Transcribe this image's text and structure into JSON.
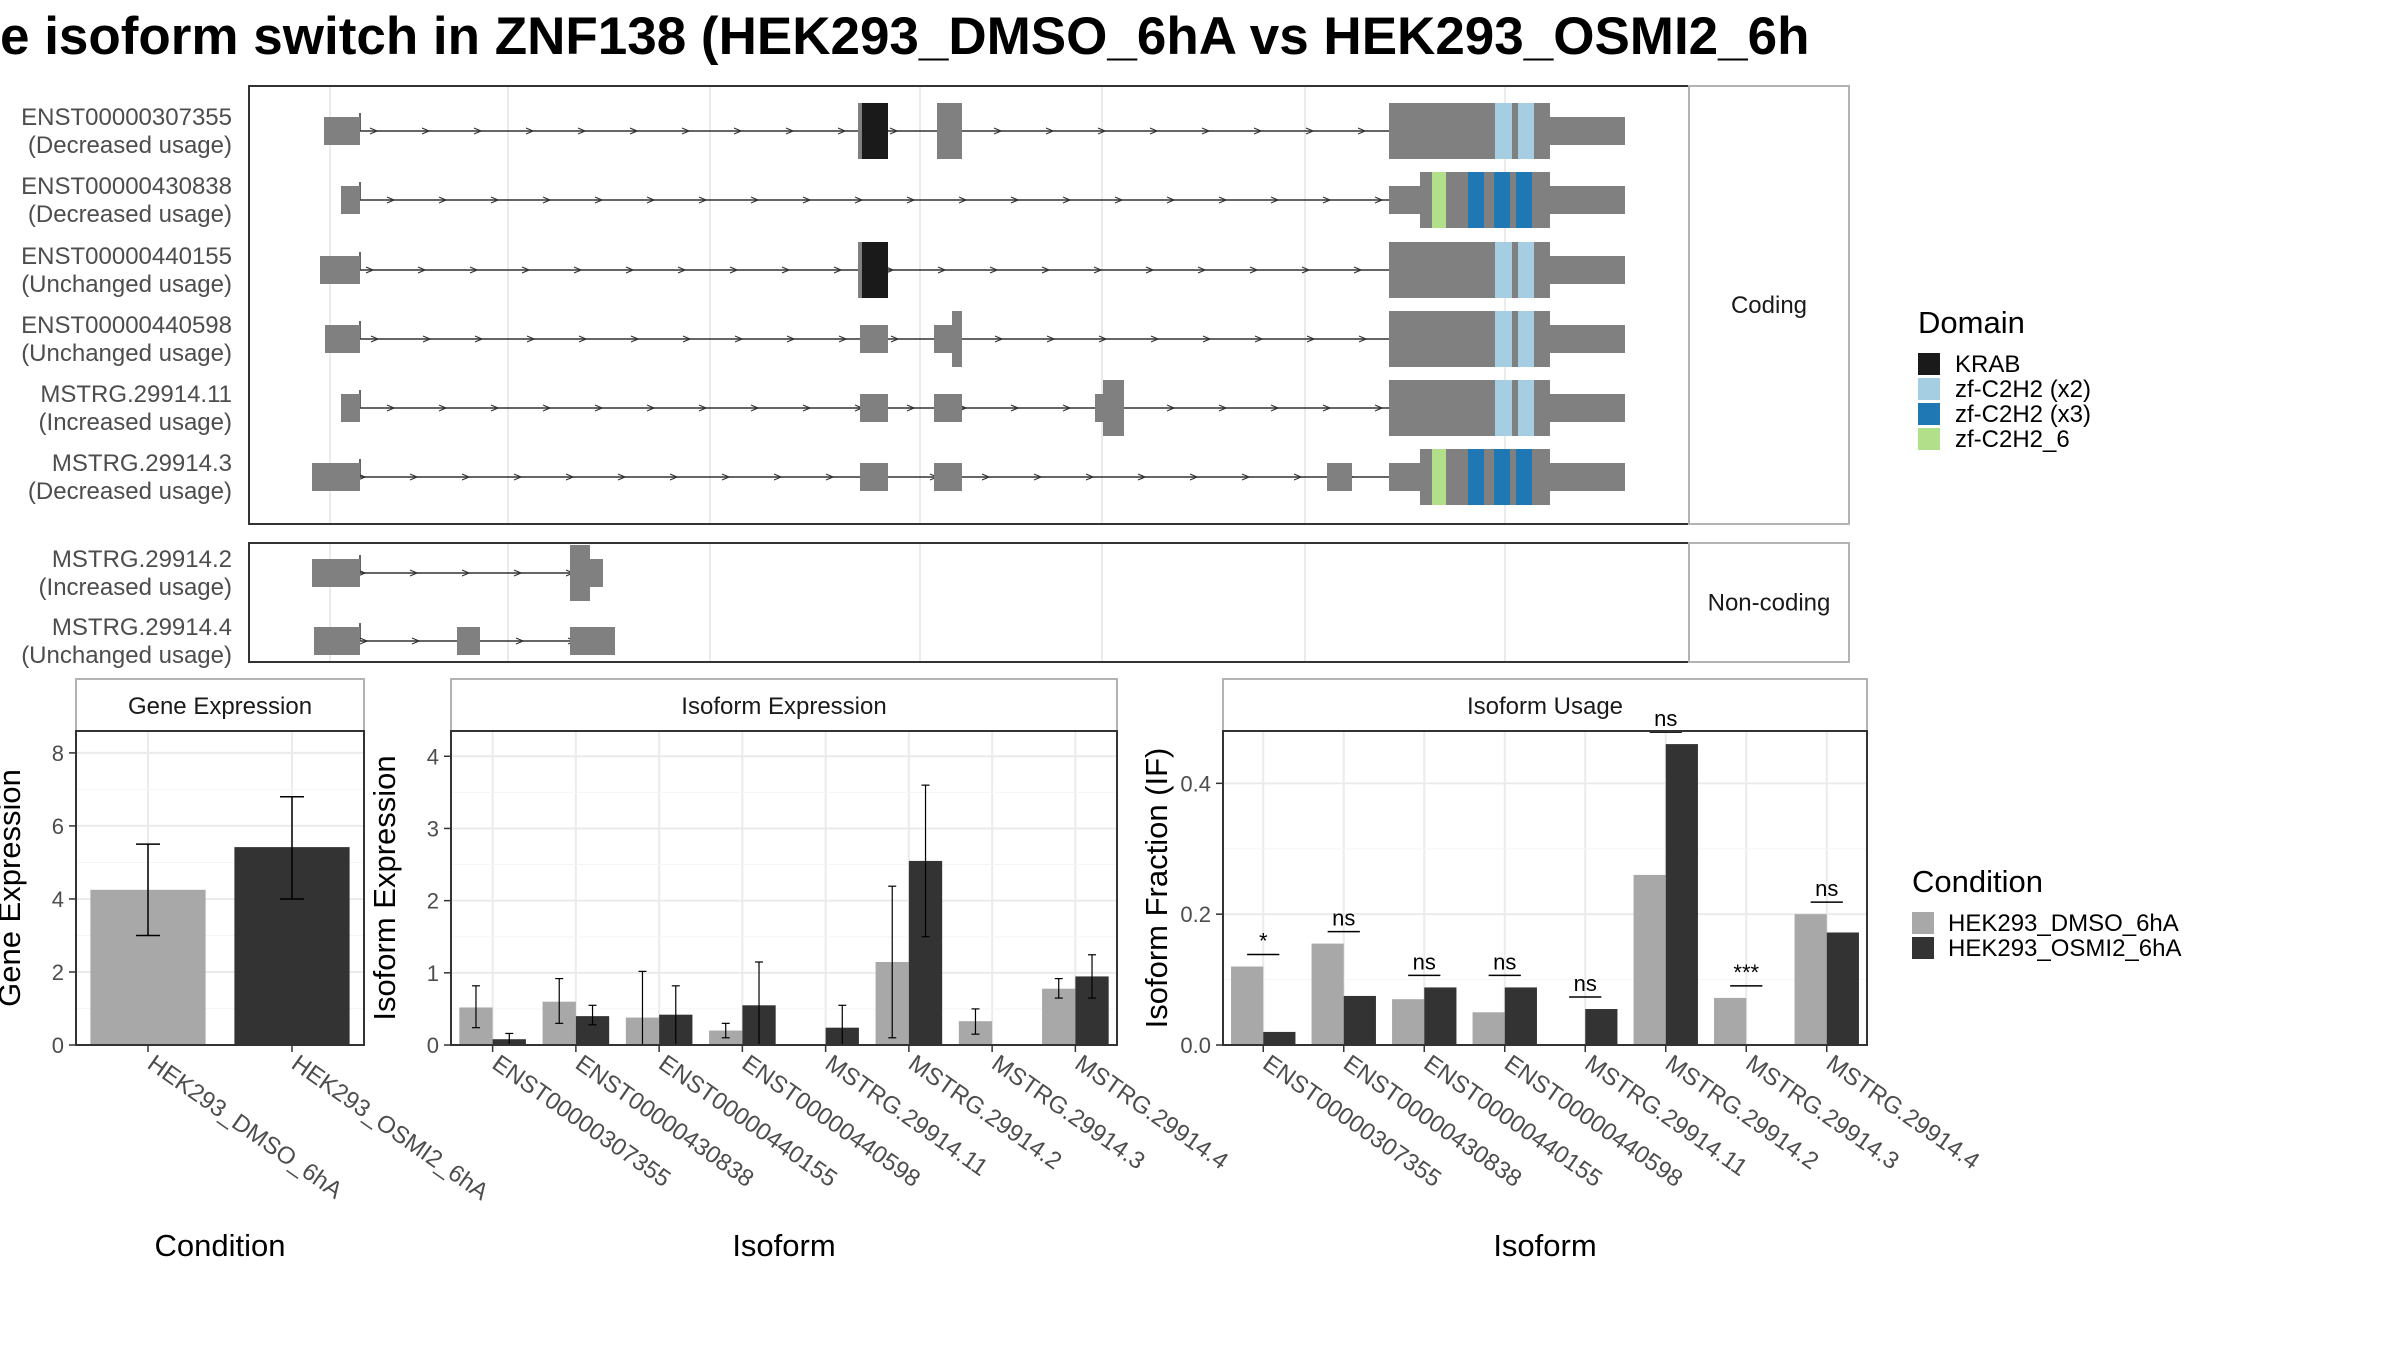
{
  "title": "e isoform switch in ZNF138 (HEK293_DMSO_6hA vs HEK293_OSMI2_6h",
  "colors": {
    "exon": "#808080",
    "KRAB": "#1a1a1a",
    "zf_x2": "#a6cee3",
    "zf_x3": "#1f78b4",
    "zf_6": "#b2df8a",
    "dmso": "#a8a8a8",
    "osmi2": "#333333",
    "grid": "#ebebeb",
    "panel_border": "#333333",
    "strip_border": "#b3b3b3"
  },
  "legend_domain": {
    "title": "Domain",
    "items": [
      {
        "label": "KRAB",
        "color_key": "KRAB"
      },
      {
        "label": "zf-C2H2 (x2)",
        "color_key": "zf_x2"
      },
      {
        "label": "zf-C2H2 (x3)",
        "color_key": "zf_x3"
      },
      {
        "label": "zf-C2H2_6",
        "color_key": "zf_6"
      }
    ]
  },
  "legend_condition": {
    "title": "Condition",
    "items": [
      {
        "label": "HEK293_DMSO_6hA",
        "color_key": "dmso"
      },
      {
        "label": "HEK293_OSMI2_6hA",
        "color_key": "osmi2"
      }
    ]
  },
  "structure": {
    "coding_label": "Coding",
    "noncoding_label": "Non-coding",
    "coding": [
      {
        "id": "ENST00000307355",
        "usage": "(Decreased usage)"
      },
      {
        "id": "ENST00000430838",
        "usage": "(Decreased usage)"
      },
      {
        "id": "ENST00000440155",
        "usage": "(Unchanged usage)"
      },
      {
        "id": "ENST00000440598",
        "usage": "(Unchanged usage)"
      },
      {
        "id": "MSTRG.29914.11",
        "usage": "(Increased usage)"
      },
      {
        "id": "MSTRG.29914.3",
        "usage": "(Decreased usage)"
      }
    ],
    "noncoding": [
      {
        "id": "MSTRG.29914.2",
        "usage": "(Increased usage)"
      },
      {
        "id": "MSTRG.29914.4",
        "usage": "(Unchanged usage)"
      }
    ]
  },
  "chart_data": [
    {
      "type": "bar",
      "strip": "Gene Expression",
      "xlabel": "Condition",
      "ylabel": "Gene Expression",
      "ylim": [
        0,
        8.6
      ],
      "yticks": [
        0,
        2,
        4,
        6,
        8
      ],
      "categories": [
        "HEK293_DMSO_6hA",
        "HEK293_OSMI2_6hA"
      ],
      "values": [
        4.25,
        5.42
      ],
      "err_low": [
        3.0,
        4.0
      ],
      "err_high": [
        5.5,
        6.8
      ]
    },
    {
      "type": "bar",
      "strip": "Isoform Expression",
      "xlabel": "Isoform",
      "ylabel": "Isoform Expression",
      "ylim": [
        0,
        4.35
      ],
      "yticks": [
        0,
        1,
        2,
        3,
        4
      ],
      "categories": [
        "ENST00000307355",
        "ENST00000430838",
        "ENST00000440155",
        "ENST00000440598",
        "MSTRG.29914.11",
        "MSTRG.29914.2",
        "MSTRG.29914.3",
        "MSTRG.29914.4"
      ],
      "series": [
        {
          "name": "HEK293_DMSO_6hA",
          "values": [
            0.52,
            0.6,
            0.38,
            0.2,
            0.0,
            1.15,
            0.33,
            0.78
          ],
          "err_low": [
            0.24,
            0.3,
            0.0,
            0.1,
            0.0,
            0.1,
            0.15,
            0.65
          ],
          "err_high": [
            0.82,
            0.92,
            1.02,
            0.3,
            0.0,
            2.2,
            0.5,
            0.92
          ]
        },
        {
          "name": "HEK293_OSMI2_6hA",
          "values": [
            0.08,
            0.4,
            0.42,
            0.55,
            0.24,
            2.55,
            0.0,
            0.95
          ],
          "err_low": [
            0.0,
            0.28,
            0.0,
            0.0,
            0.0,
            1.5,
            0.0,
            0.65
          ],
          "err_high": [
            0.16,
            0.55,
            0.82,
            1.15,
            0.55,
            3.6,
            0.0,
            1.25
          ]
        }
      ]
    },
    {
      "type": "bar",
      "strip": "Isoform Usage",
      "xlabel": "Isoform",
      "ylabel": "Isoform Fraction (IF)",
      "ylim": [
        0,
        0.48
      ],
      "yticks": [
        0.0,
        0.2,
        0.4
      ],
      "ytick_labels": [
        "0.0",
        "0.2",
        "0.4"
      ],
      "categories": [
        "ENST00000307355",
        "ENST00000430838",
        "ENST00000440155",
        "ENST00000440598",
        "MSTRG.29914.11",
        "MSTRG.29914.2",
        "MSTRG.29914.3",
        "MSTRG.29914.4"
      ],
      "series": [
        {
          "name": "HEK293_DMSO_6hA",
          "values": [
            0.12,
            0.155,
            0.07,
            0.05,
            0.0,
            0.26,
            0.072,
            0.2
          ]
        },
        {
          "name": "HEK293_OSMI2_6hA",
          "values": [
            0.02,
            0.075,
            0.088,
            0.088,
            0.055,
            0.46,
            0.0,
            0.172
          ]
        }
      ],
      "significance": [
        "*",
        "ns",
        "ns",
        "ns",
        "ns",
        "ns",
        "***",
        "ns"
      ]
    }
  ]
}
